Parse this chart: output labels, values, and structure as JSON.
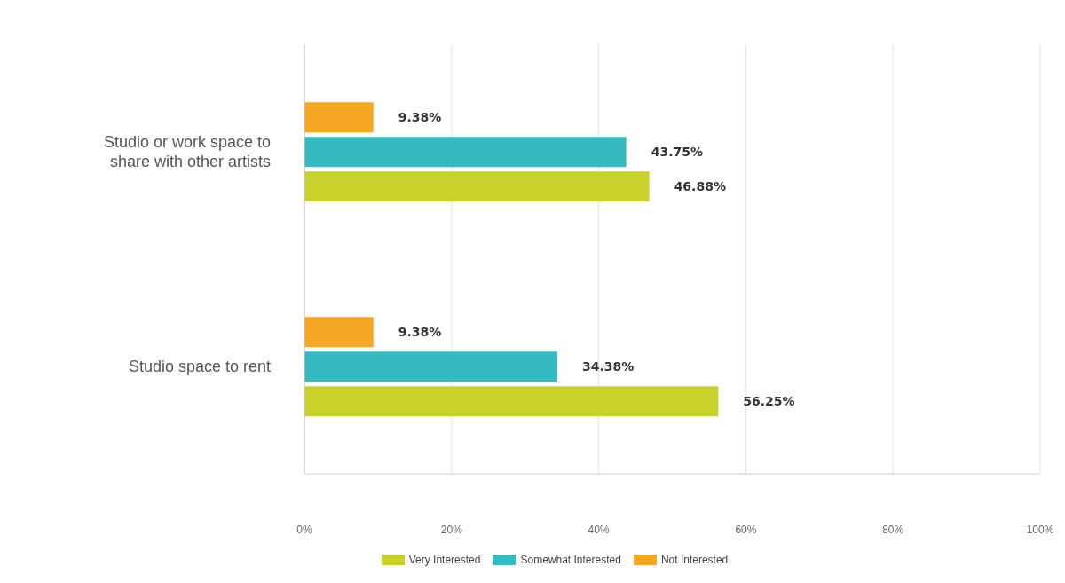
{
  "chart_data": {
    "type": "bar",
    "orientation": "horizontal",
    "categories": [
      "Studio or work space to share with other artists",
      "Studio space to rent"
    ],
    "series": [
      {
        "name": "Very Interested",
        "color": "#c9d22a",
        "values": [
          46.88,
          56.25
        ],
        "value_labels": [
          "46.88%",
          "56.25%"
        ]
      },
      {
        "name": "Somewhat Interested",
        "color": "#33bbbf",
        "values": [
          43.75,
          34.38
        ],
        "value_labels": [
          "43.75%",
          "34.38%"
        ]
      },
      {
        "name": "Not Interested",
        "color": "#f5a623",
        "values": [
          9.38,
          9.38
        ],
        "value_labels": [
          "9.38%",
          "9.38%"
        ]
      }
    ],
    "xlim": [
      0,
      100
    ],
    "xticks": [
      {
        "value": 0,
        "label": "0%"
      },
      {
        "value": 20,
        "label": "20%"
      },
      {
        "value": 40,
        "label": "40%"
      },
      {
        "value": 60,
        "label": "60%"
      },
      {
        "value": 80,
        "label": "80%"
      },
      {
        "value": 100,
        "label": "100%"
      }
    ],
    "grid": "x",
    "legend": "bottom"
  }
}
